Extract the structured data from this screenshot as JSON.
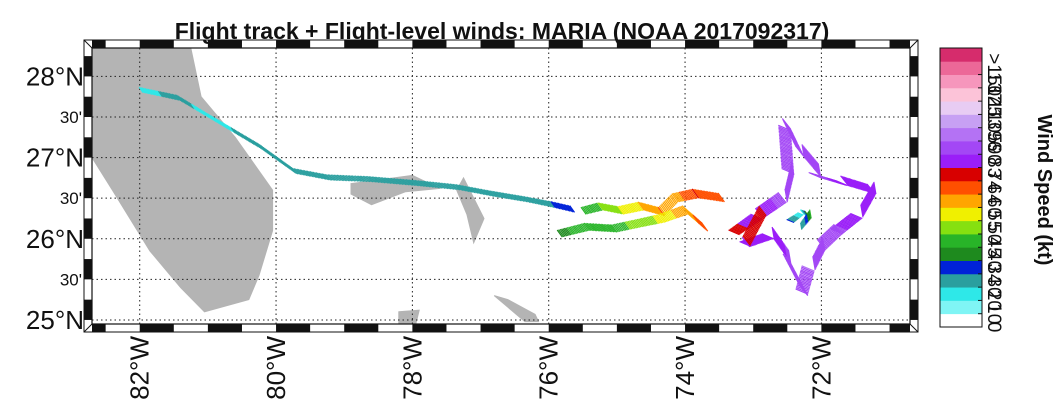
{
  "chart_data": {
    "type": "map-scatter",
    "title": "Flight track + Flight-level winds: MARIA (NOAA 2017092317)",
    "colorbar_label": "Wind Speed (kt)",
    "xlim": [
      -82.7,
      -70.7
    ],
    "ylim": [
      24.95,
      28.35
    ],
    "grid": true,
    "x_ticks": [
      {
        "value": -82,
        "label": "82°W"
      },
      {
        "value": -80,
        "label": "80°W"
      },
      {
        "value": -78,
        "label": "78°W"
      },
      {
        "value": -76,
        "label": "76°W"
      },
      {
        "value": -74,
        "label": "74°W"
      },
      {
        "value": -72,
        "label": "72°W"
      }
    ],
    "y_ticks_major": [
      {
        "value": 28,
        "label": "28°N"
      },
      {
        "value": 27,
        "label": "27°N"
      },
      {
        "value": 26,
        "label": "26°N"
      },
      {
        "value": 25,
        "label": "25°N"
      }
    ],
    "y_ticks_minor": [
      {
        "value": 27.5,
        "label": "30'"
      },
      {
        "value": 26.5,
        "label": "30'"
      },
      {
        "value": 25.5,
        "label": "30'"
      }
    ],
    "colorbar": {
      "levels": [
        0,
        10,
        20,
        30,
        34,
        40,
        45,
        50,
        55,
        60,
        64,
        74,
        83,
        90,
        96,
        105,
        113,
        125,
        137,
        150
      ],
      "labels": [
        "0",
        "10",
        "20",
        "30",
        "34",
        "40",
        "45",
        "50",
        "55",
        "60",
        "64",
        "74",
        "83",
        "90",
        "96",
        "105",
        "113",
        "125",
        "137",
        ">150"
      ],
      "colors": [
        "#ffffff",
        "#7ff5f5",
        "#2ee8e8",
        "#2a9f9f",
        "#0022d8",
        "#1e8a1e",
        "#28b428",
        "#86e010",
        "#f0f000",
        "#ffa500",
        "#ff5000",
        "#d80000",
        "#9a1ef8",
        "#a347f5",
        "#b472f4",
        "#c7a0f3",
        "#e8ccf3",
        "#fcc3d8",
        "#f696bc",
        "#ec6898",
        "#d62c6c"
      ]
    },
    "land": [
      {
        "name": "Florida",
        "points": [
          [
            -82.5,
            28.35
          ],
          [
            -81.25,
            28.35
          ],
          [
            -81.1,
            27.75
          ],
          [
            -80.6,
            27.25
          ],
          [
            -80.05,
            26.6
          ],
          [
            -80.05,
            26.1
          ],
          [
            -80.25,
            25.55
          ],
          [
            -80.4,
            25.25
          ],
          [
            -81.05,
            25.1
          ],
          [
            -81.4,
            25.4
          ],
          [
            -81.85,
            25.85
          ],
          [
            -82.4,
            26.6
          ],
          [
            -82.7,
            27.0
          ],
          [
            -82.7,
            28.35
          ]
        ]
      },
      {
        "name": "Grand Bahama",
        "points": [
          [
            -78.9,
            26.68
          ],
          [
            -78.0,
            26.78
          ],
          [
            -77.6,
            26.62
          ],
          [
            -78.1,
            26.58
          ],
          [
            -78.6,
            26.42
          ],
          [
            -78.9,
            26.55
          ]
        ]
      },
      {
        "name": "Abaco",
        "points": [
          [
            -77.25,
            26.75
          ],
          [
            -76.95,
            26.25
          ],
          [
            -77.1,
            25.95
          ],
          [
            -77.2,
            26.3
          ],
          [
            -77.35,
            26.6
          ]
        ]
      },
      {
        "name": "Andros-north",
        "points": [
          [
            -78.2,
            25.1
          ],
          [
            -77.9,
            25.12
          ],
          [
            -77.95,
            24.95
          ],
          [
            -78.2,
            24.95
          ]
        ]
      },
      {
        "name": "Eleuthera",
        "points": [
          [
            -76.8,
            25.3
          ],
          [
            -76.6,
            25.25
          ],
          [
            -76.2,
            25.07
          ],
          [
            -76.15,
            24.98
          ],
          [
            -76.35,
            24.98
          ]
        ]
      }
    ],
    "series": [
      {
        "segment": "track-nw",
        "points": [
          [
            -81.95,
            27.8,
            18
          ],
          [
            -81.4,
            27.7,
            22
          ],
          [
            -81.0,
            27.5,
            18
          ],
          [
            -80.6,
            27.3,
            20
          ],
          [
            -80.2,
            27.1,
            22
          ],
          [
            -79.7,
            26.8,
            20
          ],
          [
            -79.2,
            26.72,
            22
          ],
          [
            -78.6,
            26.7,
            20
          ],
          [
            -77.9,
            26.65,
            22
          ],
          [
            -77.3,
            26.6,
            20
          ],
          [
            -76.8,
            26.52,
            22
          ],
          [
            -76.3,
            26.45,
            22
          ],
          [
            -75.9,
            26.38,
            30
          ],
          [
            -75.6,
            26.32,
            34
          ]
        ]
      },
      {
        "segment": "track-north-leg",
        "points": [
          [
            -75.45,
            26.3,
            40
          ],
          [
            -75.2,
            26.35,
            45
          ],
          [
            -74.9,
            26.3,
            50
          ],
          [
            -74.6,
            26.35,
            55
          ],
          [
            -74.3,
            26.28,
            60
          ],
          [
            -74.1,
            26.45,
            58
          ],
          [
            -73.8,
            26.5,
            64
          ],
          [
            -73.4,
            26.45,
            60
          ]
        ]
      },
      {
        "segment": "track-south-leg",
        "points": [
          [
            -75.8,
            26.02,
            38
          ],
          [
            -75.4,
            26.1,
            44
          ],
          [
            -75.0,
            26.08,
            44
          ],
          [
            -74.6,
            26.15,
            46
          ],
          [
            -74.3,
            26.2,
            52
          ],
          [
            -73.95,
            26.3,
            58
          ],
          [
            -73.65,
            26.08,
            62
          ]
        ]
      },
      {
        "segment": "core-pattern",
        "points": [
          [
            -73.2,
            26.05,
            70
          ],
          [
            -72.85,
            26.25,
            80
          ],
          [
            -72.5,
            26.45,
            85
          ],
          [
            -72.4,
            26.8,
            86
          ],
          [
            -72.45,
            27.35,
            86
          ],
          [
            -72.25,
            27.0,
            84
          ],
          [
            -72.0,
            26.75,
            88
          ],
          [
            -71.6,
            26.65,
            80
          ],
          [
            -71.2,
            26.55,
            74
          ],
          [
            -71.4,
            26.25,
            80
          ],
          [
            -71.7,
            26.05,
            84
          ],
          [
            -71.95,
            25.85,
            86
          ],
          [
            -72.1,
            25.6,
            90
          ],
          [
            -72.2,
            25.3,
            86
          ],
          [
            -72.45,
            25.7,
            84
          ],
          [
            -72.7,
            26.0,
            80
          ],
          [
            -73.05,
            25.9,
            74
          ],
          [
            -72.8,
            26.3,
            70
          ]
        ]
      },
      {
        "segment": "core-eye",
        "points": [
          [
            -72.4,
            26.2,
            30
          ],
          [
            -72.25,
            26.3,
            12
          ],
          [
            -72.15,
            26.25,
            40
          ],
          [
            -72.3,
            26.1,
            20
          ]
        ]
      }
    ]
  }
}
